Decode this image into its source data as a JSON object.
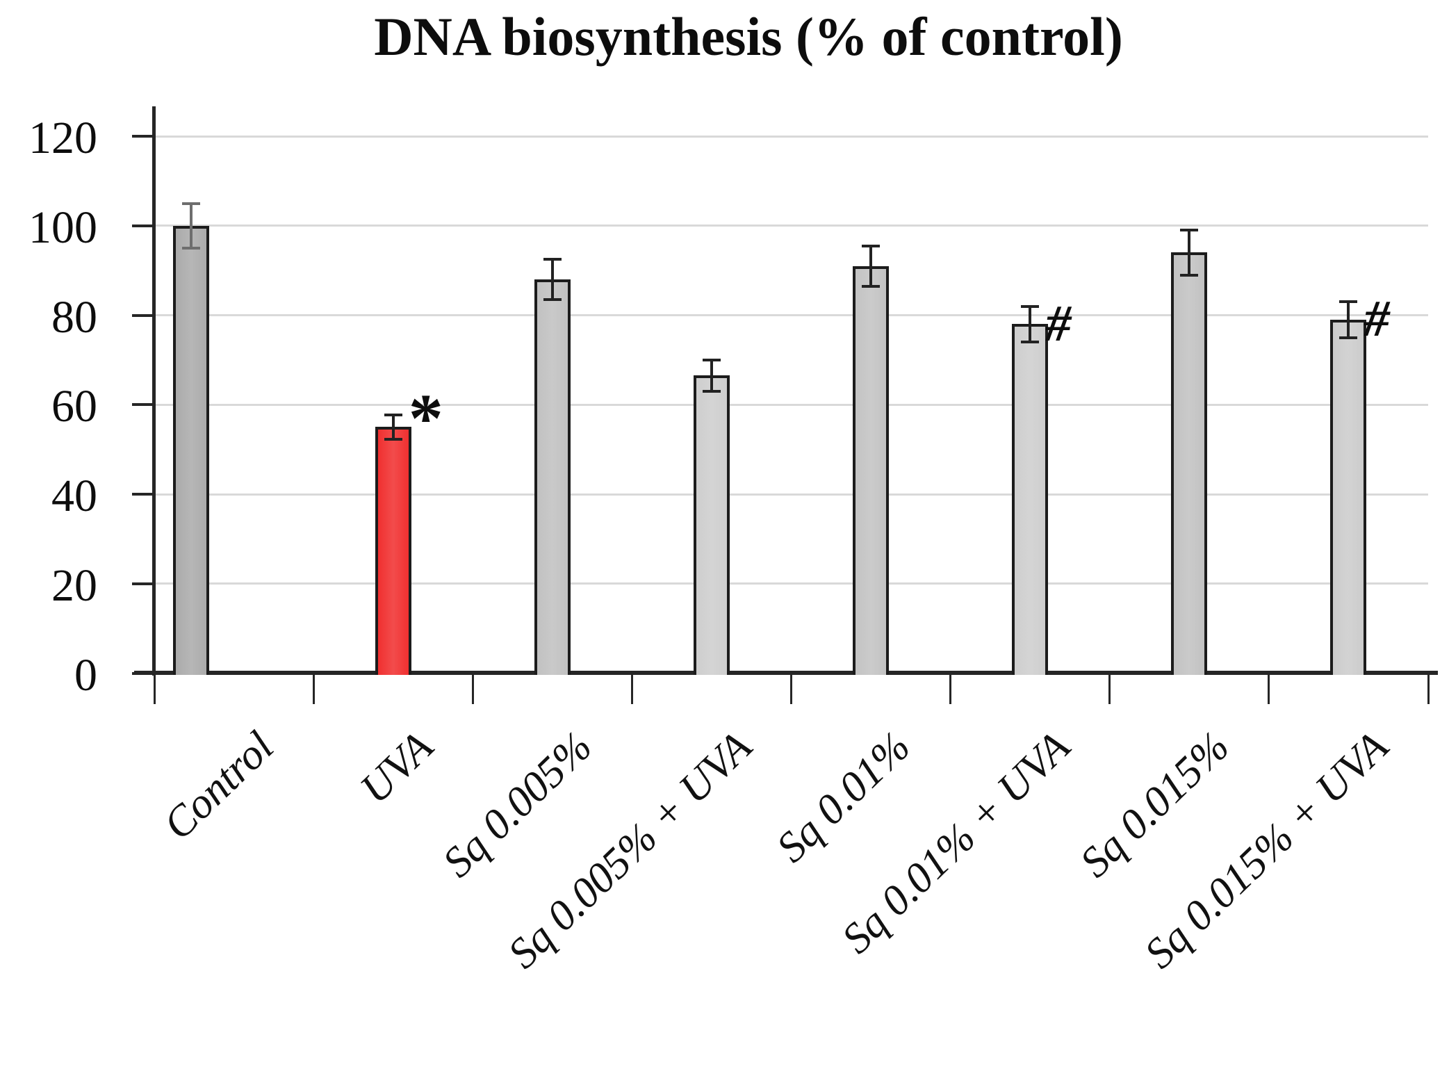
{
  "chart_data": {
    "type": "bar",
    "title": "DNA biosynthesis (% of control)",
    "categories": [
      "Control",
      "UVA",
      "Sq 0.005%",
      "Sq 0.005% + UVA",
      "Sq 0.01%",
      "Sq 0.01% + UVA",
      "Sq 0.015%",
      "Sq 0.015% + UVA"
    ],
    "values": [
      100,
      55,
      88,
      66.5,
      91,
      78,
      94,
      79
    ],
    "error_bars": [
      5,
      2.7,
      4.5,
      3.5,
      4.5,
      4,
      5,
      4
    ],
    "annotations": [
      "",
      "*",
      "",
      "",
      "",
      "#",
      "",
      "#"
    ],
    "yticks": [
      0,
      20,
      40,
      60,
      80,
      100,
      120
    ],
    "ylim": [
      0,
      120
    ],
    "xlabel": "",
    "ylabel": "",
    "grid": true,
    "legend": false,
    "bar_fill_colors": [
      "#ababab",
      "#f03030",
      "#c1c1c1",
      "#cecece",
      "#c3c3c3",
      "#cecece",
      "#c2c2c2",
      "#cccccc"
    ],
    "bar_edge_color": "#1c1c1c",
    "error_bar_colors": [
      "#6e6e6e",
      "#222222",
      "#222222",
      "#222222",
      "#222222",
      "#222222",
      "#222222",
      "#222222"
    ],
    "highlight_color": "#f03030",
    "gridline_color": "#d9d9d9",
    "axis_color": "#262626"
  }
}
